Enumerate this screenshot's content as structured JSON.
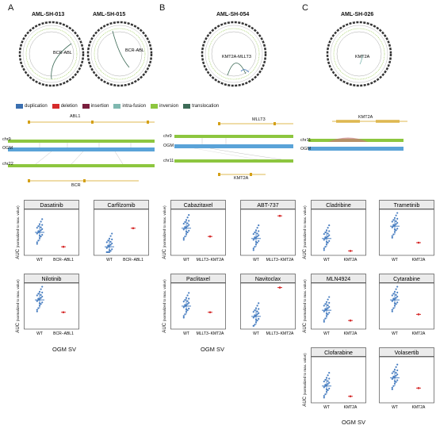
{
  "panels": {
    "A": {
      "letter": "A",
      "samples": [
        "AML-SH-013",
        "AML-SH-015"
      ],
      "circos": [
        {
          "annotation": "BCR-ABL"
        },
        {
          "annotation": "BCR-ABL"
        }
      ],
      "gene_top": "ABL1",
      "gene_bottom": "BCR",
      "tracks": [
        "chr9",
        "OGM",
        "chr22"
      ]
    },
    "B": {
      "letter": "B",
      "samples": [
        "AML-SH-054"
      ],
      "circos": [
        {
          "annotation": "KMT2A-MLLT3"
        }
      ],
      "gene_top": "MLLT3",
      "gene_bottom": "KMT2A",
      "tracks": [
        "chr9",
        "OGM",
        "chr11"
      ]
    },
    "C": {
      "letter": "C",
      "samples": [
        "AML-SH-026"
      ],
      "circos": [
        {
          "annotation": "KMT2A"
        }
      ],
      "gene_top": "KMT2A",
      "tracks": [
        "chr11",
        "OGM"
      ]
    }
  },
  "legend": {
    "items": [
      {
        "label": "duplication",
        "color": "#3a6fb0"
      },
      {
        "label": "deletion",
        "color": "#d62a2a"
      },
      {
        "label": "insertion",
        "color": "#7a1f3d"
      },
      {
        "label": "intra-fusion",
        "color": "#7fb8b0"
      },
      {
        "label": "inversion",
        "color": "#8dc63f"
      },
      {
        "label": "translocation",
        "color": "#3d6b57"
      }
    ]
  },
  "colors": {
    "wt": "#4a7fc1",
    "mut": "#d62a2a",
    "frame": "#333333",
    "chr": "#8dc63f",
    "ogm": "#5aa3d8",
    "gene": "#d4a017"
  },
  "axis": {
    "ylabel": "AUC",
    "ylabel_sub": "(normalized to max. value)",
    "xlabel": "OGM SV",
    "wt": "WT"
  },
  "chart_data": [
    {
      "type": "scatter",
      "title": "Dasatinib",
      "categories": [
        "WT",
        "BCR−ABL1"
      ],
      "series": [
        {
          "values": [
            0.5,
            0.15
          ]
        }
      ],
      "ylim": [
        0,
        1
      ]
    },
    {
      "type": "scatter",
      "title": "Carfilzomib",
      "categories": [
        "WT",
        "BCR−ABL1"
      ],
      "series": [
        {
          "values": [
            0.15,
            0.6
          ]
        }
      ],
      "ylim": [
        0,
        1
      ]
    },
    {
      "type": "scatter",
      "title": "Nilotinib",
      "categories": [
        "WT",
        "BCR−ABL1"
      ],
      "series": [
        {
          "values": [
            0.65,
            0.35
          ]
        }
      ],
      "ylim": [
        0,
        1
      ]
    },
    {
      "type": "scatter",
      "title": "Cabazitaxel",
      "categories": [
        "WT",
        "MLLT3−KMT2A"
      ],
      "series": [
        {
          "values": [
            0.6,
            0.4
          ]
        }
      ],
      "ylim": [
        0,
        1
      ]
    },
    {
      "type": "scatter",
      "title": "ABT-737",
      "categories": [
        "WT",
        "MLLT3−KMT2A"
      ],
      "series": [
        {
          "values": [
            0.35,
            0.9
          ]
        }
      ],
      "ylim": [
        0,
        1
      ]
    },
    {
      "type": "scatter",
      "title": "Paclitaxel",
      "categories": [
        "WT",
        "MLLT3−KMT2A"
      ],
      "series": [
        {
          "values": [
            0.5,
            0.35
          ]
        }
      ],
      "ylim": [
        0,
        1
      ]
    },
    {
      "type": "scatter",
      "title": "Navitoclax",
      "categories": [
        "WT",
        "MLLT3−KMT2A"
      ],
      "series": [
        {
          "values": [
            0.25,
            0.95
          ]
        }
      ],
      "ylim": [
        0,
        1
      ]
    },
    {
      "type": "scatter",
      "title": "Cladribine",
      "categories": [
        "WT",
        "KMT2A"
      ],
      "series": [
        {
          "values": [
            0.35,
            0.05
          ]
        }
      ],
      "ylim": [
        0,
        1
      ]
    },
    {
      "type": "scatter",
      "title": "Trametinib",
      "categories": [
        "WT",
        "KMT2A"
      ],
      "series": [
        {
          "values": [
            0.65,
            0.25
          ]
        }
      ],
      "ylim": [
        0,
        1
      ]
    },
    {
      "type": "scatter",
      "title": "MLN4924",
      "categories": [
        "WT",
        "KMT2A"
      ],
      "series": [
        {
          "values": [
            0.4,
            0.15
          ]
        }
      ],
      "ylim": [
        0,
        1
      ]
    },
    {
      "type": "scatter",
      "title": "Cytarabine",
      "categories": [
        "WT",
        "KMT2A"
      ],
      "series": [
        {
          "values": [
            0.65,
            0.3
          ]
        }
      ],
      "ylim": [
        0,
        1
      ]
    },
    {
      "type": "scatter",
      "title": "Clofarabine",
      "categories": [
        "WT",
        "KMT2A"
      ],
      "series": [
        {
          "values": [
            0.35,
            0.1
          ]
        }
      ],
      "ylim": [
        0,
        1
      ]
    },
    {
      "type": "scatter",
      "title": "Volasertib",
      "categories": [
        "WT",
        "KMT2A"
      ],
      "series": [
        {
          "values": [
            0.55,
            0.3
          ]
        }
      ],
      "ylim": [
        0,
        1
      ]
    }
  ]
}
